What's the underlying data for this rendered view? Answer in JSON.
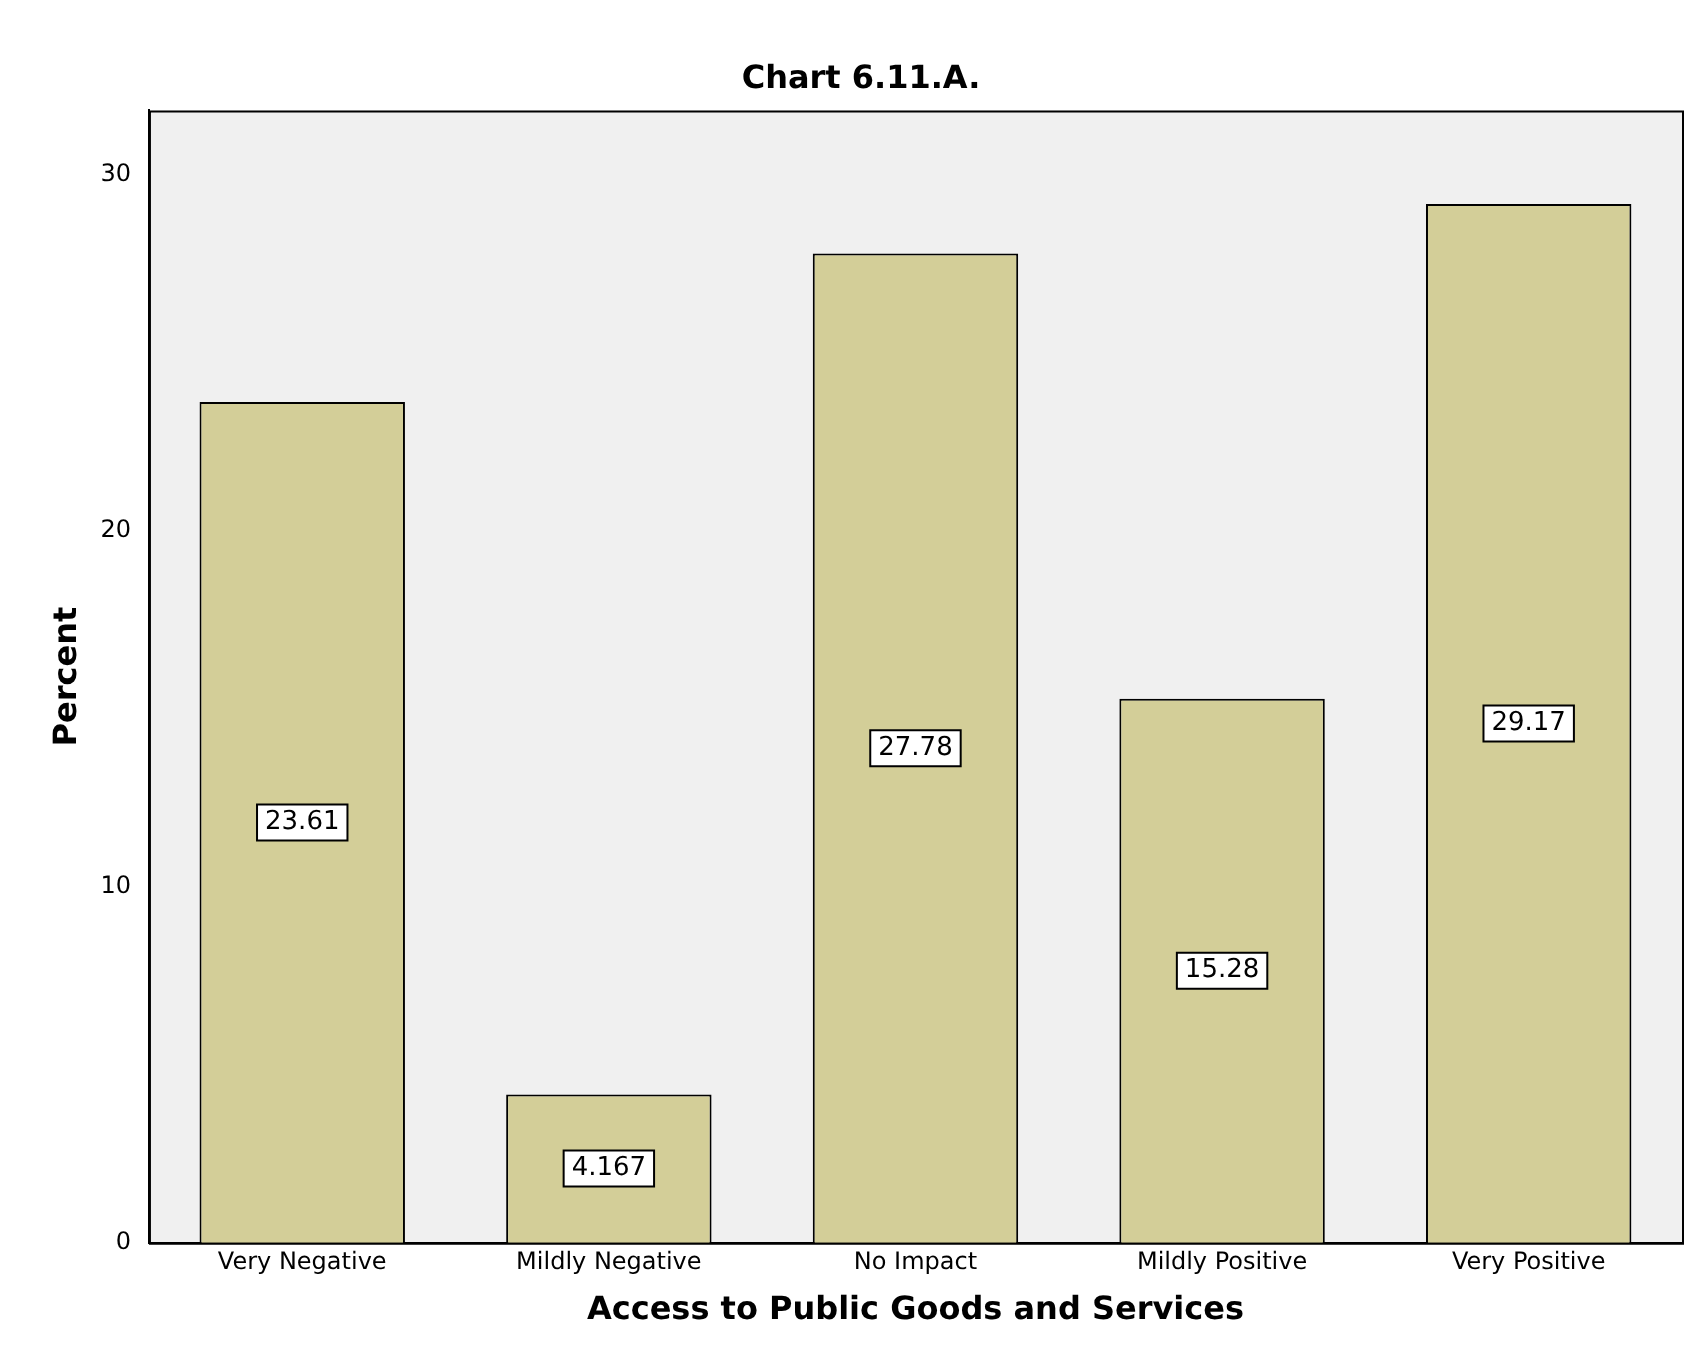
{
  "chart_data": {
    "type": "bar",
    "title": "Chart 6.11.A.",
    "xlabel": "Access to Public Goods and Services",
    "ylabel": "Percent",
    "categories": [
      "Very Negative",
      "Mildly Negative",
      "No Impact",
      "Mildly Positive",
      "Very Positive"
    ],
    "values": [
      23.61,
      4.167,
      27.78,
      15.28,
      29.17
    ],
    "color": "#d3ce98",
    "ylim": [
      0,
      31.8
    ],
    "yticks": [
      0,
      10,
      20,
      30
    ],
    "grid": false,
    "legend": false,
    "data_labels": true
  }
}
